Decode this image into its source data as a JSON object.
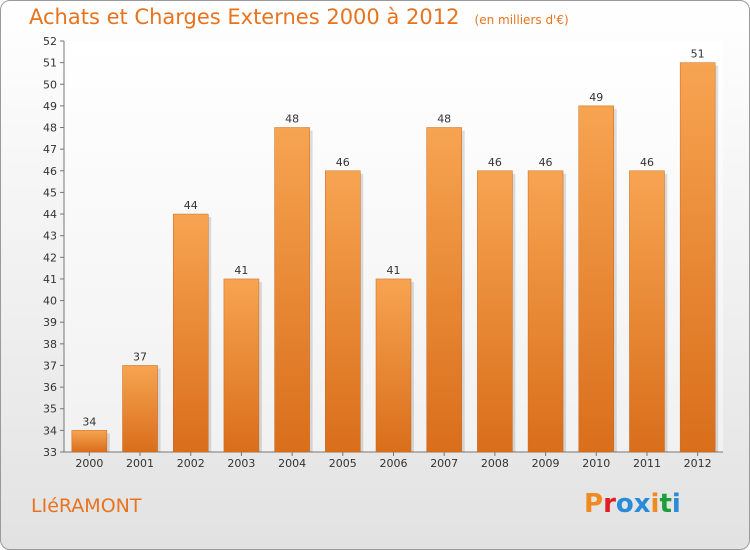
{
  "header": {
    "title": "Achats et Charges Externes 2000 à 2012",
    "subtitle": "(en milliers d'€)"
  },
  "footer": {
    "commune": "LIéRAMONT",
    "logo_text": "Proxiti"
  },
  "colors": {
    "accent": "#e8731e",
    "bar_top": "#f7a451",
    "bar_bottom": "#d96e1b",
    "logo_letters": [
      "#f08a1e",
      "#e02020",
      "#2a8bd8",
      "#2a8bd8",
      "#f08a1e",
      "#1e9e3a",
      "#2a8bd8"
    ]
  },
  "chart_data": {
    "type": "bar",
    "categories": [
      "2000",
      "2001",
      "2002",
      "2003",
      "2004",
      "2005",
      "2006",
      "2007",
      "2008",
      "2009",
      "2010",
      "2011",
      "2012"
    ],
    "values": [
      34,
      37,
      44,
      41,
      48,
      46,
      41,
      48,
      46,
      46,
      49,
      46,
      51
    ],
    "title": "Achats et Charges Externes 2000 à 2012",
    "subtitle": "(en milliers d'€)",
    "ylim": [
      33,
      52
    ],
    "yticks": [
      33,
      34,
      35,
      36,
      37,
      38,
      39,
      40,
      41,
      42,
      43,
      44,
      45,
      46,
      47,
      48,
      49,
      50,
      51,
      52
    ],
    "grid": false,
    "legend": "none"
  }
}
